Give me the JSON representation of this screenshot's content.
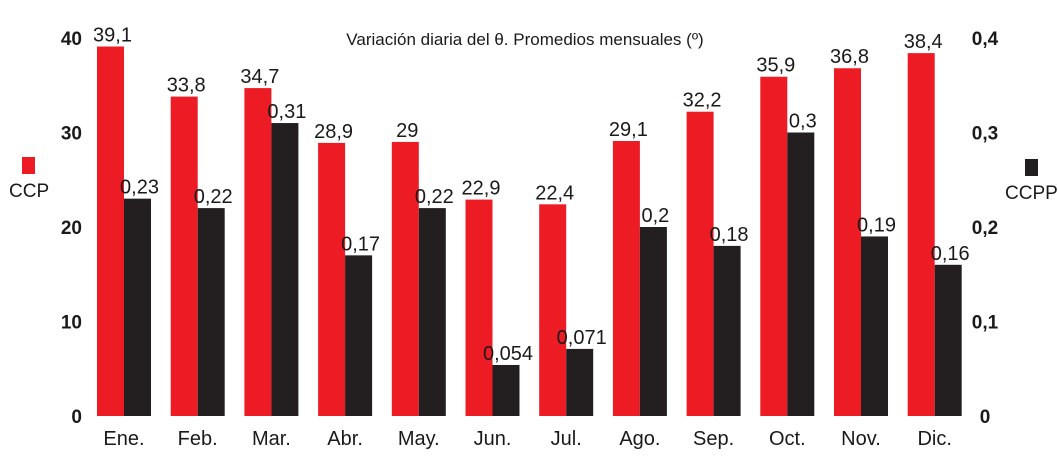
{
  "chart_data": {
    "type": "bar",
    "title": "Variación diaria del θ. Promedios mensuales (º)",
    "categories": [
      "Ene.",
      "Feb.",
      "Mar.",
      "Abr.",
      "May.",
      "Jun.",
      "Jul.",
      "Ago.",
      "Sep.",
      "Oct.",
      "Nov.",
      "Dic."
    ],
    "left_axis": {
      "label": "CCP",
      "ylim": [
        0,
        40
      ],
      "ticks": [
        "0",
        "10",
        "20",
        "30",
        "40"
      ]
    },
    "right_axis": {
      "label": "CCPP",
      "ylim": [
        0,
        0.4
      ],
      "ticks": [
        "0",
        "0,1",
        "0,2",
        "0,3",
        "0,4"
      ]
    },
    "series": [
      {
        "name": "CCP",
        "axis": "left",
        "color": "#ed1c24",
        "values": [
          39.1,
          33.8,
          34.7,
          28.9,
          29,
          22.9,
          22.4,
          29.1,
          32.2,
          35.9,
          36.8,
          38.4
        ],
        "labels": [
          "39,1",
          "33,8",
          "34,7",
          "28,9",
          "29",
          "22,9",
          "22,4",
          "29,1",
          "32,2",
          "35,9",
          "36,8",
          "38,4"
        ]
      },
      {
        "name": "CCPP",
        "axis": "right",
        "color": "#231f20",
        "values": [
          0.23,
          0.22,
          0.31,
          0.17,
          0.22,
          0.054,
          0.071,
          0.2,
          0.18,
          0.3,
          0.19,
          0.16
        ],
        "labels": [
          "0,23",
          "0,22",
          "0,31",
          "0,17",
          "0,22",
          "0,054",
          "0,071",
          "0,2",
          "0,18",
          "0,3",
          "0,19",
          "0,16"
        ]
      }
    ],
    "grid": false,
    "legend": "left and right of plot area"
  }
}
